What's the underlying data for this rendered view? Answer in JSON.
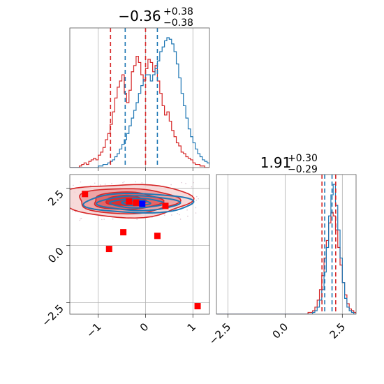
{
  "chart_data": {
    "type": "corner",
    "colors": {
      "blue": "#1f77b4",
      "red": "#d62728",
      "marker_blue": "#0000ff",
      "marker_red": "#ff0000",
      "grid": "#b0b0b0"
    },
    "param_x": {
      "title_median": "−0.36",
      "title_plus": "+0.38",
      "title_minus": "−0.38",
      "range": [
        -1.6,
        1.35
      ],
      "ticks": [
        -1,
        0,
        1
      ],
      "tick_labels": [
        "−1",
        "0",
        "1"
      ],
      "red_quantiles": [
        -0.74,
        0.0
      ],
      "blue_quantiles": [
        -0.43,
        0.25
      ]
    },
    "param_y": {
      "title_median": "1.91",
      "title_plus": "+0.30",
      "title_minus": "−0.29",
      "range": [
        -3.0,
        3.1
      ],
      "ticks": [
        -2.5,
        0.0,
        2.5
      ],
      "tick_labels": [
        "−2.5",
        "0.0",
        "2.5"
      ],
      "red_quantiles": [
        1.61,
        2.21
      ],
      "blue_quantiles": [
        1.73,
        2.05
      ]
    },
    "hist_x_blue": {
      "start": -1.6,
      "bin_width": 0.05,
      "values": [
        0,
        0,
        0,
        0,
        0,
        0,
        0,
        0,
        0,
        0,
        0,
        0,
        1,
        1,
        2,
        2,
        3,
        4,
        5,
        7,
        9,
        12,
        15,
        18,
        22,
        27,
        32,
        37,
        42,
        48,
        53,
        57,
        60,
        60,
        56,
        60,
        64,
        69,
        75,
        78,
        82,
        84,
        83,
        80,
        75,
        67,
        58,
        48,
        40,
        32,
        25,
        20,
        16,
        12,
        9,
        7,
        5,
        4,
        3,
        2,
        1,
        1,
        0
      ]
    },
    "hist_x_red": {
      "start": -1.6,
      "bin_width": 0.05,
      "values": [
        0,
        0,
        0,
        0,
        1,
        2,
        3,
        2,
        4,
        5,
        6,
        5,
        8,
        10,
        13,
        18,
        22,
        28,
        36,
        45,
        52,
        56,
        60,
        48,
        42,
        50,
        62,
        66,
        72,
        68,
        60,
        56,
        64,
        70,
        68,
        62,
        66,
        56,
        48,
        40,
        34,
        36,
        30,
        24,
        20,
        16,
        14,
        10,
        9,
        7,
        6,
        5,
        3,
        2,
        2,
        1,
        1,
        0,
        0,
        0,
        0,
        0,
        0
      ]
    },
    "hist_y_blue": {
      "start": -3.0,
      "bin_width": 0.1,
      "values": [
        0,
        0,
        0,
        0,
        0,
        0,
        0,
        0,
        0,
        0,
        0,
        0,
        0,
        0,
        0,
        0,
        0,
        0,
        0,
        0,
        0,
        0,
        0,
        0,
        0,
        0,
        0,
        0,
        0,
        0,
        0,
        0,
        0,
        0,
        0,
        0,
        0,
        0,
        0,
        0,
        0,
        0,
        1,
        2,
        4,
        8,
        14,
        24,
        38,
        56,
        68,
        74,
        62,
        48,
        32,
        18,
        9,
        4,
        2,
        1,
        0
      ]
    },
    "hist_y_red": {
      "start": -3.0,
      "bin_width": 0.1,
      "values": [
        0,
        0,
        0,
        0,
        0,
        0,
        0,
        0,
        0,
        0,
        0,
        0,
        0,
        0,
        0,
        0,
        0,
        0,
        0,
        0,
        0,
        0,
        0,
        0,
        0,
        0,
        0,
        0,
        0,
        0,
        0,
        0,
        0,
        0,
        0,
        0,
        0,
        0,
        0,
        0,
        1,
        1,
        2,
        4,
        8,
        14,
        22,
        32,
        42,
        52,
        58,
        56,
        48,
        38,
        28,
        18,
        11,
        6,
        3,
        2,
        1
      ]
    },
    "scatter_red": {
      "x": [
        -1.28,
        -0.35,
        -0.2,
        -0.47,
        -0.77,
        0.25,
        0.42,
        1.1
      ],
      "y": [
        2.25,
        1.92,
        1.87,
        0.58,
        -0.15,
        0.42,
        1.73,
        -2.65
      ]
    },
    "scatter_blue": {
      "x": [
        -0.07
      ],
      "y": [
        1.82
      ]
    },
    "contours_blue": [
      {
        "cx": -0.15,
        "cy": 1.85,
        "rx": 1.15,
        "ry": 0.42
      },
      {
        "cx": -0.15,
        "cy": 1.85,
        "rx": 0.85,
        "ry": 0.31
      },
      {
        "cx": -0.18,
        "cy": 1.85,
        "rx": 0.55,
        "ry": 0.2
      },
      {
        "cx": -0.2,
        "cy": 1.86,
        "rx": 0.3,
        "ry": 0.11
      }
    ],
    "contours_red": [
      {
        "cx": -0.42,
        "cy": 1.97,
        "rx": 1.38,
        "ry": 0.72
      },
      {
        "cx": -0.4,
        "cy": 1.95,
        "rx": 1.05,
        "ry": 0.55
      },
      {
        "cx": -0.4,
        "cy": 1.95,
        "rx": 0.72,
        "ry": 0.38
      },
      {
        "cx": -0.42,
        "cy": 1.96,
        "rx": 0.42,
        "ry": 0.22
      }
    ],
    "grid": true
  }
}
